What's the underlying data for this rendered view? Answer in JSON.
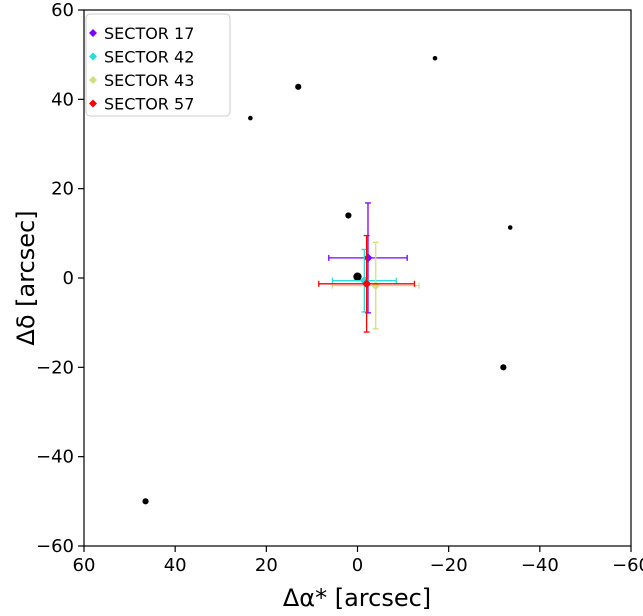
{
  "chart_data": {
    "type": "scatter",
    "title": "",
    "xlabel": "Δα* [arcsec]",
    "ylabel": "Δδ [arcsec]",
    "xlim": [
      60,
      -60
    ],
    "ylim": [
      -60,
      60
    ],
    "x_ticks": [
      60,
      40,
      20,
      0,
      -20,
      -40,
      -60
    ],
    "y_ticks": [
      -60,
      -40,
      -20,
      0,
      20,
      40,
      60
    ],
    "x_tick_labels": [
      "60",
      "40",
      "20",
      "0",
      "−20",
      "−40",
      "−60"
    ],
    "y_tick_labels": [
      "−60",
      "−40",
      "−20",
      "0",
      "20",
      "40",
      "60"
    ],
    "grid": false,
    "legend_position": "top-left",
    "background_sources": [
      {
        "x": -17,
        "y": 49.2,
        "size": "small"
      },
      {
        "x": 13,
        "y": 42.8,
        "size": "medium"
      },
      {
        "x": 23.5,
        "y": 35.8,
        "size": "small"
      },
      {
        "x": 2,
        "y": 14,
        "size": "medium"
      },
      {
        "x": -33.5,
        "y": 11.3,
        "size": "small"
      },
      {
        "x": 0,
        "y": 0.3,
        "size": "large"
      },
      {
        "x": -32,
        "y": -20,
        "size": "medium"
      },
      {
        "x": 46.5,
        "y": -50,
        "size": "medium"
      }
    ],
    "series": [
      {
        "name": "SECTOR 17",
        "color": "#7f00ff",
        "x": -2.3,
        "y": 4.5,
        "xerr": 8.6,
        "yerr": 12.3
      },
      {
        "name": "SECTOR 42",
        "color": "#2adddd",
        "x": -1.5,
        "y": -0.6,
        "xerr": 7.0,
        "yerr": 7.0
      },
      {
        "name": "SECTOR 43",
        "color": "#d4dd80",
        "x": -4.0,
        "y": -1.7,
        "xerr": 9.5,
        "yerr": 9.7
      },
      {
        "name": "SECTOR 57",
        "color": "#ff0000",
        "x": -2.0,
        "y": -1.3,
        "xerr": 10.5,
        "yerr": 10.8
      }
    ]
  }
}
